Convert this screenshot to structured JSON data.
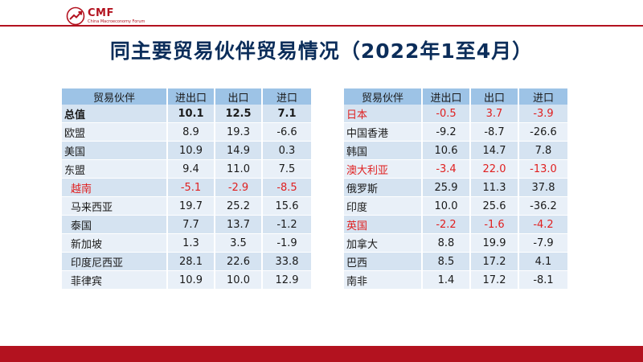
{
  "logo": {
    "text": "CMF",
    "subtext": "China Macroeconomy Forum"
  },
  "title": "同主要贸易伙伴贸易情况（2022年1至4月）",
  "colors": {
    "brand_red": "#b3121f",
    "header_blue": "#9dc3e6",
    "row_blue": "#d5e3f1",
    "row_light": "#e9f0f8",
    "highlight_red": "#e02020",
    "title_navy": "#0b2d5a"
  },
  "left_table": {
    "headers": [
      "贸易伙伴",
      "进出口",
      "出口",
      "进口"
    ],
    "rows": [
      {
        "name": "总值",
        "values": [
          "10.1",
          "12.5",
          "7.1"
        ],
        "style": "bold"
      },
      {
        "name": "欧盟",
        "values": [
          "8.9",
          "19.3",
          "-6.6"
        ],
        "style": "normal"
      },
      {
        "name": "美国",
        "values": [
          "10.9",
          "14.9",
          "0.3"
        ],
        "style": "normal"
      },
      {
        "name": "东盟",
        "values": [
          "9.4",
          "11.0",
          "7.5"
        ],
        "style": "normal"
      },
      {
        "name": "越南",
        "values": [
          "-5.1",
          "-2.9",
          "-8.5"
        ],
        "style": "red",
        "indent": true
      },
      {
        "name": "马来西亚",
        "values": [
          "19.7",
          "25.2",
          "15.6"
        ],
        "style": "normal",
        "indent": true
      },
      {
        "name": "泰国",
        "values": [
          "7.7",
          "13.7",
          "-1.2"
        ],
        "style": "normal",
        "indent": true
      },
      {
        "name": "新加坡",
        "values": [
          "1.3",
          "3.5",
          "-1.9"
        ],
        "style": "normal",
        "indent": true
      },
      {
        "name": "印度尼西亚",
        "values": [
          "28.1",
          "22.6",
          "33.8"
        ],
        "style": "normal",
        "indent": true
      },
      {
        "name": "菲律宾",
        "values": [
          "10.9",
          "10.0",
          "12.9"
        ],
        "style": "normal",
        "indent": true
      }
    ]
  },
  "right_table": {
    "headers": [
      "贸易伙伴",
      "进出口",
      "出口",
      "进口"
    ],
    "rows": [
      {
        "name": "日本",
        "values": [
          "-0.5",
          "3.7",
          "-3.9"
        ],
        "style": "red"
      },
      {
        "name": "中国香港",
        "values": [
          "-9.2",
          "-8.7",
          "-26.6"
        ],
        "style": "normal"
      },
      {
        "name": "韩国",
        "values": [
          "10.6",
          "14.7",
          "7.8"
        ],
        "style": "normal"
      },
      {
        "name": "澳大利亚",
        "values": [
          "-3.4",
          "22.0",
          "-13.0"
        ],
        "style": "red"
      },
      {
        "name": "俄罗斯",
        "values": [
          "25.9",
          "11.3",
          "37.8"
        ],
        "style": "normal"
      },
      {
        "name": "印度",
        "values": [
          "10.0",
          "25.6",
          "-36.2"
        ],
        "style": "normal"
      },
      {
        "name": "英国",
        "values": [
          "-2.2",
          "-1.6",
          "-4.2"
        ],
        "style": "red"
      },
      {
        "name": "加拿大",
        "values": [
          "8.8",
          "19.9",
          "-7.9"
        ],
        "style": "normal"
      },
      {
        "name": "巴西",
        "values": [
          "8.5",
          "17.2",
          "4.1"
        ],
        "style": "normal"
      },
      {
        "name": "南非",
        "values": [
          "1.4",
          "17.2",
          "-8.1"
        ],
        "style": "normal"
      }
    ]
  }
}
